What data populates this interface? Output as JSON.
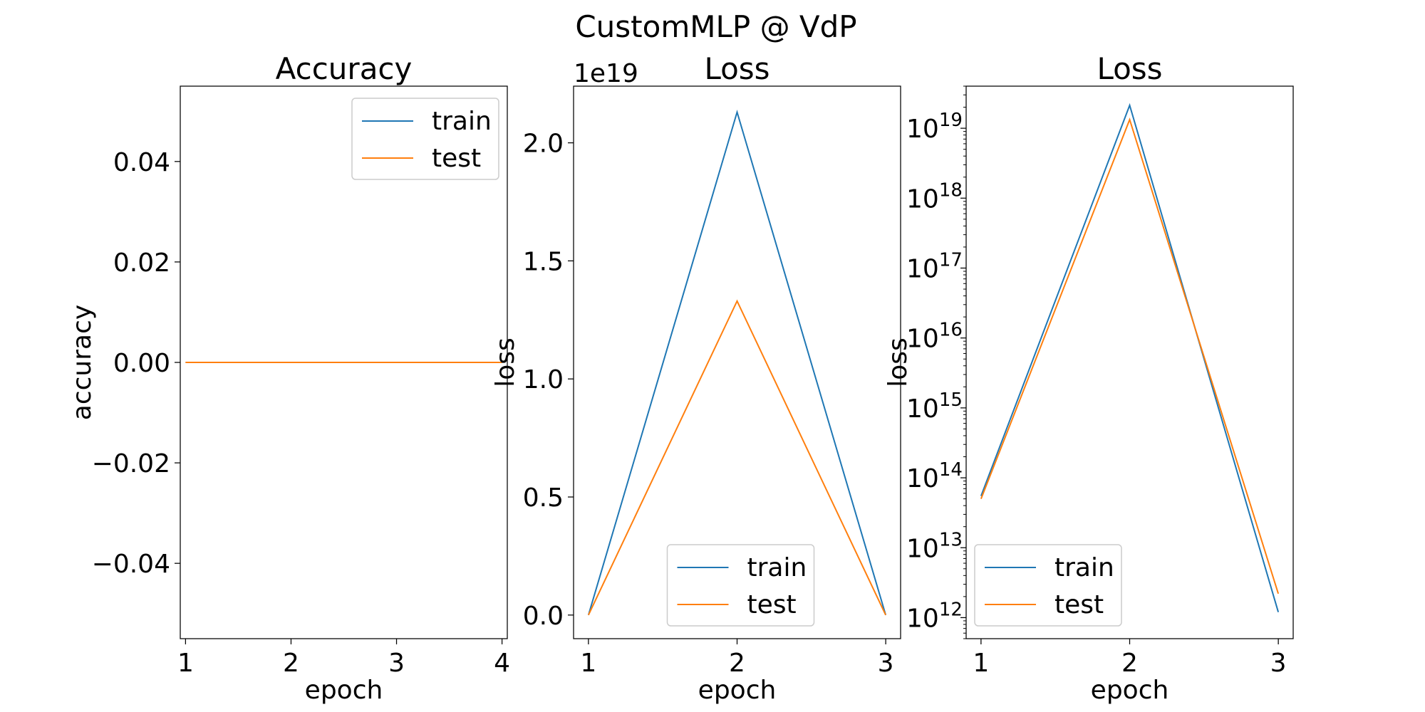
{
  "figure_title": "CustomMLP @ VdP",
  "colors": {
    "train": "#1f77b4",
    "test": "#ff7f0e"
  },
  "chart_data": [
    {
      "type": "line",
      "title": "Accuracy",
      "xlabel": "epoch",
      "ylabel": "accuracy",
      "x": [
        1,
        2,
        3,
        4
      ],
      "xticks": [
        "1",
        "2",
        "3",
        "4"
      ],
      "xlim": [
        0.95,
        4.05
      ],
      "ylim": [
        -0.055,
        0.055
      ],
      "yticks": [
        {
          "v": 0.04,
          "label": "0.04"
        },
        {
          "v": 0.02,
          "label": "0.02"
        },
        {
          "v": 0.0,
          "label": "0.00"
        },
        {
          "v": -0.02,
          "label": "−0.02"
        },
        {
          "v": -0.04,
          "label": "−0.04"
        }
      ],
      "scale": "linear",
      "legend": "upper-right",
      "series": [
        {
          "name": "train",
          "values": [
            0,
            0,
            0,
            0
          ]
        },
        {
          "name": "test",
          "values": [
            0,
            0,
            0,
            0
          ]
        }
      ]
    },
    {
      "type": "line",
      "title": "Loss",
      "xlabel": "epoch",
      "ylabel": "loss",
      "offset_label": "1e19",
      "x": [
        1,
        2,
        3
      ],
      "xticks": [
        "1",
        "2",
        "3"
      ],
      "xlim": [
        0.9,
        3.1
      ],
      "ylim": [
        -0.1,
        2.24
      ],
      "yticks": [
        {
          "v": 2.0,
          "label": "2.0"
        },
        {
          "v": 1.5,
          "label": "1.5"
        },
        {
          "v": 1.0,
          "label": "1.0"
        },
        {
          "v": 0.5,
          "label": "0.5"
        },
        {
          "v": 0.0,
          "label": "0.0"
        }
      ],
      "scale": "linear",
      "legend": "lower-center",
      "series": [
        {
          "name": "train",
          "values": [
            0.0,
            2.13,
            0.0
          ]
        },
        {
          "name": "test",
          "values": [
            0.0,
            1.33,
            0.0
          ]
        }
      ]
    },
    {
      "type": "line",
      "title": "Loss",
      "xlabel": "epoch",
      "ylabel": "loss",
      "x": [
        1,
        2,
        3
      ],
      "xticks": [
        "1",
        "2",
        "3"
      ],
      "xlim": [
        0.9,
        3.1
      ],
      "ylim": [
        500000000000.0,
        4e+19
      ],
      "yticks": [
        {
          "v": 1e+19,
          "base": "10",
          "exp": "19"
        },
        {
          "v": 1e+18,
          "base": "10",
          "exp": "18"
        },
        {
          "v": 1e+17,
          "base": "10",
          "exp": "17"
        },
        {
          "v": 1e+16,
          "base": "10",
          "exp": "16"
        },
        {
          "v": 1000000000000000.0,
          "base": "10",
          "exp": "15"
        },
        {
          "v": 100000000000000.0,
          "base": "10",
          "exp": "14"
        },
        {
          "v": 10000000000000.0,
          "base": "10",
          "exp": "13"
        },
        {
          "v": 1000000000000.0,
          "base": "10",
          "exp": "12"
        }
      ],
      "scale": "log",
      "legend": "lower-left",
      "series": [
        {
          "name": "train",
          "values": [
            55000000000000.0,
            2.13e+19,
            1200000000000.0
          ]
        },
        {
          "name": "test",
          "values": [
            50000000000000.0,
            1.33e+19,
            2200000000000.0
          ]
        }
      ]
    }
  ]
}
